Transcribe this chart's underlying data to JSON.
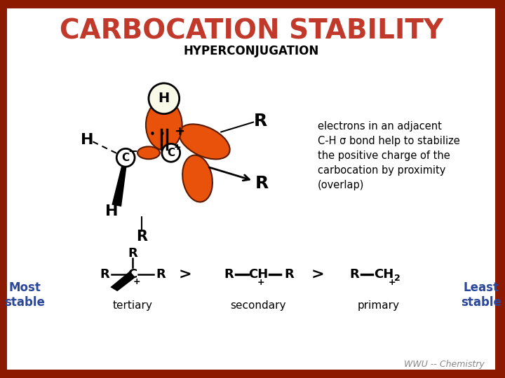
{
  "title": "CARBOCATION STABILITY",
  "subtitle": "HYPERCONJUGATION",
  "title_color": "#C0392B",
  "subtitle_color": "#000000",
  "bg_color": "#FFFFFF",
  "border_color": "#8B1A00",
  "orange_color": "#E8520A",
  "orange_edge": "#5A1A00",
  "text_color_blue": "#2B4799",
  "annotation_text": [
    "electrons in an adjacent",
    "C-H σ bond help to stabilize",
    "the positive charge of the",
    "carbocation by proximity",
    "(overlap)"
  ],
  "most_stable": "Most\nstable",
  "least_stable": "Least\nstable",
  "tertiary": "tertiary",
  "secondary": "secondary",
  "primary": "primary",
  "wwu": "WWU -- Chemistry"
}
